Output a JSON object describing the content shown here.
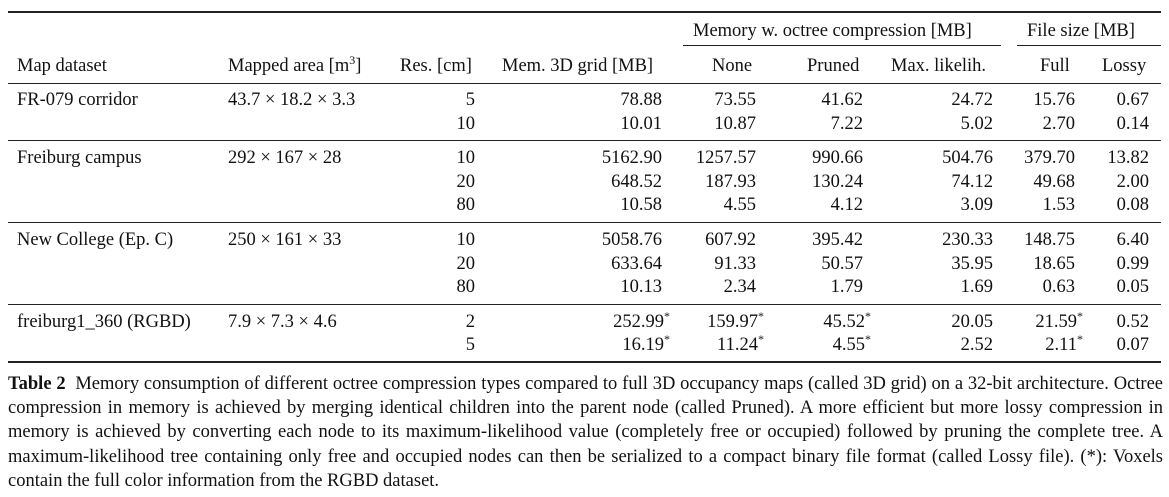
{
  "header": {
    "group_memory": "Memory w. octree compression [MB]",
    "group_file": "File size [MB]",
    "col_dataset": "Map dataset",
    "col_area": "Mapped area [m",
    "col_area_sup": "3",
    "col_area_close": "]",
    "col_res": "Res. [cm]",
    "col_grid": "Mem. 3D grid [MB]",
    "col_none": "None",
    "col_pruned": "Pruned",
    "col_maxlik": "Max. likelih.",
    "col_full": "Full",
    "col_lossy": "Lossy"
  },
  "rows": [
    {
      "dataset": "FR-079 corridor",
      "area": "43.7 × 18.2 × 3.3",
      "res": "5",
      "grid": "78.88",
      "none": "73.55",
      "pruned": "41.62",
      "maxlik": "24.72",
      "full": "15.76",
      "lossy": "0.67"
    },
    {
      "dataset": "",
      "area": "",
      "res": "10",
      "grid": "10.01",
      "none": "10.87",
      "pruned": "7.22",
      "maxlik": "5.02",
      "full": "2.70",
      "lossy": "0.14"
    },
    {
      "dataset": "Freiburg campus",
      "area": "292 × 167 × 28",
      "res": "10",
      "grid": "5162.90",
      "none": "1257.57",
      "pruned": "990.66",
      "maxlik": "504.76",
      "full": "379.70",
      "lossy": "13.82"
    },
    {
      "dataset": "",
      "area": "",
      "res": "20",
      "grid": "648.52",
      "none": "187.93",
      "pruned": "130.24",
      "maxlik": "74.12",
      "full": "49.68",
      "lossy": "2.00"
    },
    {
      "dataset": "",
      "area": "",
      "res": "80",
      "grid": "10.58",
      "none": "4.55",
      "pruned": "4.12",
      "maxlik": "3.09",
      "full": "1.53",
      "lossy": "0.08"
    },
    {
      "dataset": "New College (Ep. C)",
      "area": "250 × 161 × 33",
      "res": "10",
      "grid": "5058.76",
      "none": "607.92",
      "pruned": "395.42",
      "maxlik": "230.33",
      "full": "148.75",
      "lossy": "6.40"
    },
    {
      "dataset": "",
      "area": "",
      "res": "20",
      "grid": "633.64",
      "none": "91.33",
      "pruned": "50.57",
      "maxlik": "35.95",
      "full": "18.65",
      "lossy": "0.99"
    },
    {
      "dataset": "",
      "area": "",
      "res": "80",
      "grid": "10.13",
      "none": "2.34",
      "pruned": "1.79",
      "maxlik": "1.69",
      "full": "0.63",
      "lossy": "0.05"
    },
    {
      "dataset": "freiburg1_360 (RGBD)",
      "area": "7.9 × 7.3 × 4.6",
      "res": "2",
      "grid": "252.99",
      "none": "159.97",
      "pruned": "45.52",
      "maxlik": "20.05",
      "full": "21.59",
      "lossy": "0.52"
    },
    {
      "dataset": "",
      "area": "",
      "res": "5",
      "grid": "16.19",
      "none": "11.24",
      "pruned": "4.55",
      "maxlik": "2.52",
      "full": "2.11",
      "lossy": "0.07"
    }
  ],
  "marker": "*",
  "caption": {
    "label": "Table 2",
    "text": "Memory consumption of different octree compression types compared to full 3D occupancy maps (called 3D grid) on a 32-bit architecture. Octree compression in memory is achieved by merging identical children into the parent node (called Pruned). A more efficient but more lossy compression in memory is achieved by converting each node to its maximum-likelihood value (completely free or occupied) followed by pruning the complete tree. A maximum-likelihood tree containing only free and occupied nodes can then be serialized to a compact binary file format (called Lossy file). (*): Voxels contain the full color information from the RGBD dataset."
  }
}
